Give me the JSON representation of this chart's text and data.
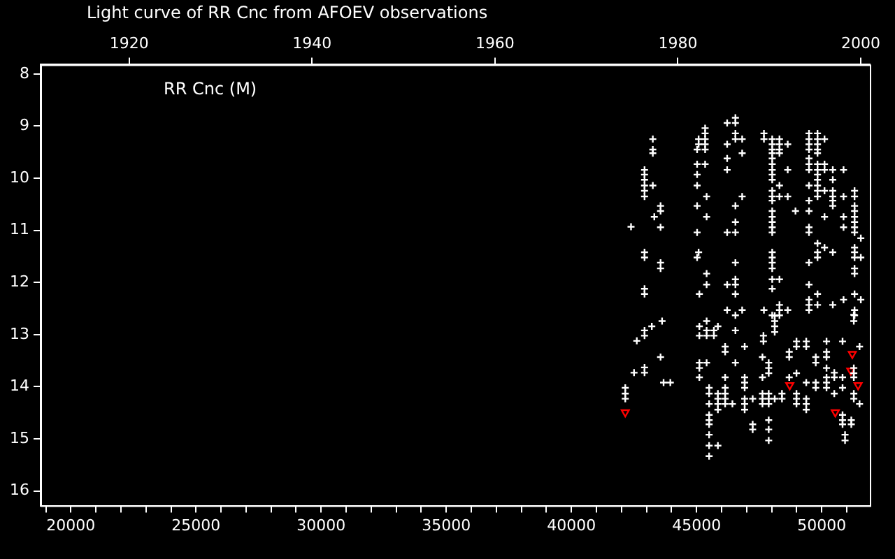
{
  "chart_data": {
    "type": "scatter",
    "title": "Light curve of RR Cnc from AFOEV observations",
    "annotations": [
      "RR Cnc (M)"
    ],
    "xlim": [
      18790,
      51920
    ],
    "xticks": [
      {
        "value": 19000,
        "label": null
      },
      20000,
      {
        "value": 21000,
        "label": null
      },
      {
        "value": 22000,
        "label": null
      },
      {
        "value": 23000,
        "label": null
      },
      {
        "value": 24000,
        "label": null
      },
      25000,
      {
        "value": 26000,
        "label": null
      },
      {
        "value": 27000,
        "label": null
      },
      {
        "value": 28000,
        "label": null
      },
      {
        "value": 29000,
        "label": null
      },
      30000,
      {
        "value": 31000,
        "label": null
      },
      {
        "value": 32000,
        "label": null
      },
      {
        "value": 33000,
        "label": null
      },
      {
        "value": 34000,
        "label": null
      },
      35000,
      {
        "value": 36000,
        "label": null
      },
      {
        "value": 37000,
        "label": null
      },
      {
        "value": 38000,
        "label": null
      },
      {
        "value": 39000,
        "label": null
      },
      40000,
      {
        "value": 41000,
        "label": null
      },
      {
        "value": 42000,
        "label": null
      },
      {
        "value": 43000,
        "label": null
      },
      {
        "value": 44000,
        "label": null
      },
      45000,
      {
        "value": 46000,
        "label": null
      },
      {
        "value": 47000,
        "label": null
      },
      {
        "value": 48000,
        "label": null
      },
      {
        "value": 49000,
        "label": null
      },
      50000,
      {
        "value": 51000,
        "label": null
      }
    ],
    "x2lim": [
      1910.3,
      2001.0
    ],
    "x2ticks": [
      1920,
      1940,
      1960,
      1980,
      2000
    ],
    "ylim": [
      16.28,
      7.82
    ],
    "yticks": [
      8,
      9,
      10,
      11,
      12,
      13,
      14,
      15,
      16
    ],
    "marker": "cross",
    "series": [
      {
        "color": "#ffffff",
        "x": [
          42150,
          42150,
          42150,
          42380,
          42500,
          42610,
          42920,
          42920,
          42920,
          42920,
          42920,
          42920,
          42920,
          42920,
          42920,
          42920,
          42920,
          42920,
          42920,
          42920,
          43210,
          43250,
          43250,
          43250,
          43250,
          43310,
          43560,
          43560,
          43560,
          43560,
          43560,
          43560,
          43620,
          43680,
          43950,
          45020,
          45020,
          45020,
          45020,
          45020,
          45020,
          45020,
          45080,
          45080,
          45080,
          45110,
          45110,
          45110,
          45110,
          45110,
          45110,
          45340,
          45340,
          45340,
          45340,
          45340,
          45340,
          45400,
          45400,
          45400,
          45400,
          45400,
          45400,
          45400,
          45400,
          45500,
          45500,
          45500,
          45500,
          45500,
          45500,
          45500,
          45500,
          45500,
          45690,
          45690,
          45850,
          45850,
          45850,
          45850,
          45850,
          45850,
          46140,
          46140,
          46140,
          46140,
          46140,
          46140,
          46140,
          46220,
          46220,
          46220,
          46220,
          46220,
          46220,
          46220,
          46430,
          46550,
          46550,
          46550,
          46550,
          46550,
          46550,
          46550,
          46550,
          46550,
          46550,
          46550,
          46550,
          46550,
          46550,
          46820,
          46820,
          46820,
          46820,
          46920,
          46920,
          46920,
          46920,
          46920,
          46920,
          46920,
          47240,
          47240,
          47240,
          47630,
          47630,
          47630,
          47630,
          47630,
          47670,
          47670,
          47690,
          47690,
          47690,
          47880,
          47880,
          47880,
          47880,
          47880,
          47880,
          47880,
          47880,
          47880,
          48020,
          48020,
          48020,
          48020,
          48020,
          48020,
          48020,
          48020,
          48020,
          48020,
          48020,
          48020,
          48020,
          48020,
          48020,
          48020,
          48020,
          48020,
          48020,
          48020,
          48020,
          48020,
          48020,
          48020,
          48120,
          48120,
          48120,
          48120,
          48120,
          48310,
          48310,
          48310,
          48310,
          48310,
          48310,
          48310,
          48310,
          48310,
          48310,
          48410,
          48410,
          48640,
          48640,
          48640,
          48640,
          48700,
          48700,
          48700,
          48950,
          48990,
          48990,
          48990,
          48990,
          48990,
          48990,
          49380,
          49380,
          49380,
          49380,
          49380,
          49380,
          49490,
          49490,
          49490,
          49490,
          49490,
          49490,
          49490,
          49490,
          49490,
          49490,
          49490,
          49490,
          49490,
          49490,
          49490,
          49490,
          49490,
          49760,
          49760,
          49760,
          49760,
          49830,
          49830,
          49830,
          49830,
          49830,
          49830,
          49830,
          49830,
          49830,
          49830,
          49830,
          49830,
          49830,
          49830,
          49830,
          49830,
          49830,
          50110,
          50110,
          50110,
          50110,
          50110,
          50110,
          50190,
          50190,
          50190,
          50190,
          50190,
          50190,
          50190,
          50440,
          50440,
          50440,
          50440,
          50440,
          50440,
          50440,
          50440,
          50500,
          50500,
          50500,
          50830,
          50830,
          50830,
          50830,
          50830,
          50830,
          50870,
          50870,
          50870,
          50870,
          50870,
          50930,
          50930,
          51180,
          51180,
          51280,
          51280,
          51280,
          51280,
          51280,
          51280,
          51280,
          51310,
          51310,
          51310,
          51310,
          51310,
          51310,
          51310,
          51310,
          51310,
          51310,
          51310,
          51310,
          51310,
          51310,
          51310,
          51310,
          51510,
          51510,
          51560,
          51560,
          51560
        ],
        "values": [
          14.02,
          14.13,
          14.23,
          10.93,
          13.73,
          13.12,
          9.84,
          9.93,
          10.03,
          10.14,
          10.24,
          10.35,
          11.42,
          11.52,
          12.12,
          12.22,
          12.92,
          13.02,
          13.63,
          13.73,
          12.84,
          9.25,
          9.45,
          9.52,
          10.14,
          10.74,
          10.53,
          10.63,
          10.94,
          11.62,
          11.73,
          13.43,
          12.74,
          13.92,
          13.92,
          9.45,
          9.73,
          9.93,
          10.14,
          10.53,
          11.04,
          11.52,
          9.25,
          9.35,
          11.42,
          12.22,
          12.84,
          13.02,
          13.54,
          13.64,
          13.82,
          9.04,
          9.14,
          9.25,
          9.35,
          9.45,
          9.73,
          10.35,
          10.74,
          11.83,
          12.04,
          12.74,
          12.92,
          13.02,
          13.54,
          14.02,
          14.13,
          14.33,
          14.54,
          14.64,
          14.72,
          14.92,
          15.13,
          15.33,
          12.92,
          13.02,
          12.84,
          14.13,
          14.23,
          14.33,
          14.44,
          15.13,
          13.23,
          13.33,
          13.82,
          14.02,
          14.13,
          14.23,
          14.33,
          8.94,
          9.35,
          9.62,
          9.84,
          11.04,
          12.04,
          12.53,
          14.33,
          8.84,
          8.94,
          9.14,
          9.25,
          10.53,
          10.84,
          11.04,
          11.62,
          11.94,
          12.04,
          12.22,
          12.63,
          12.92,
          13.54,
          9.25,
          9.52,
          10.35,
          12.53,
          13.23,
          13.82,
          13.92,
          14.02,
          14.23,
          14.33,
          14.44,
          14.23,
          14.72,
          14.82,
          13.43,
          13.82,
          14.13,
          14.23,
          14.33,
          13.02,
          13.13,
          9.14,
          9.25,
          12.53,
          13.54,
          13.64,
          13.74,
          14.13,
          14.23,
          14.33,
          14.64,
          14.82,
          15.03,
          9.25,
          9.35,
          9.45,
          9.52,
          9.62,
          9.73,
          9.84,
          9.93,
          10.03,
          10.24,
          10.35,
          10.43,
          10.63,
          10.74,
          10.84,
          10.94,
          11.04,
          11.42,
          11.52,
          11.62,
          11.73,
          11.94,
          12.12,
          12.63,
          12.64,
          12.74,
          12.84,
          12.95,
          14.23,
          9.25,
          9.35,
          9.45,
          9.52,
          10.14,
          10.35,
          11.94,
          12.43,
          12.53,
          12.63,
          14.13,
          14.23,
          9.35,
          9.84,
          10.35,
          12.53,
          13.33,
          13.43,
          13.82,
          10.63,
          13.13,
          13.23,
          13.74,
          14.13,
          14.23,
          14.33,
          13.13,
          13.23,
          13.92,
          14.23,
          14.33,
          14.44,
          9.14,
          9.25,
          9.35,
          9.45,
          9.62,
          9.73,
          9.84,
          10.14,
          10.43,
          10.63,
          10.94,
          11.04,
          11.62,
          12.04,
          12.33,
          12.43,
          12.53,
          13.43,
          13.54,
          13.92,
          14.02,
          9.14,
          9.25,
          9.35,
          9.45,
          9.52,
          9.73,
          9.84,
          9.93,
          10.03,
          10.14,
          10.24,
          10.35,
          11.25,
          11.42,
          11.52,
          12.22,
          12.43,
          9.25,
          9.73,
          9.84,
          10.24,
          10.74,
          11.33,
          13.13,
          13.33,
          13.43,
          13.64,
          13.82,
          13.92,
          14.02,
          9.84,
          10.03,
          10.24,
          10.35,
          10.43,
          10.53,
          11.42,
          12.43,
          13.73,
          13.82,
          14.13,
          13.13,
          13.82,
          14.02,
          14.54,
          14.64,
          14.72,
          9.84,
          10.35,
          10.74,
          10.94,
          12.33,
          14.92,
          15.03,
          14.64,
          14.72,
          12.62,
          12.74,
          13.64,
          13.74,
          13.82,
          14.13,
          14.23,
          10.24,
          10.35,
          10.53,
          10.63,
          10.74,
          10.84,
          10.94,
          11.04,
          11.33,
          11.42,
          11.52,
          11.73,
          11.83,
          12.22,
          12.53,
          12.63,
          13.23,
          14.33,
          11.15,
          11.52,
          12.33
        ]
      },
      {
        "color": "#ff0000",
        "marker": "triangle",
        "x": [
          42150,
          48720,
          50540,
          51160,
          51220,
          51450
        ],
        "values": [
          14.49,
          13.97,
          14.49,
          13.69,
          13.37,
          13.97
        ]
      }
    ]
  }
}
